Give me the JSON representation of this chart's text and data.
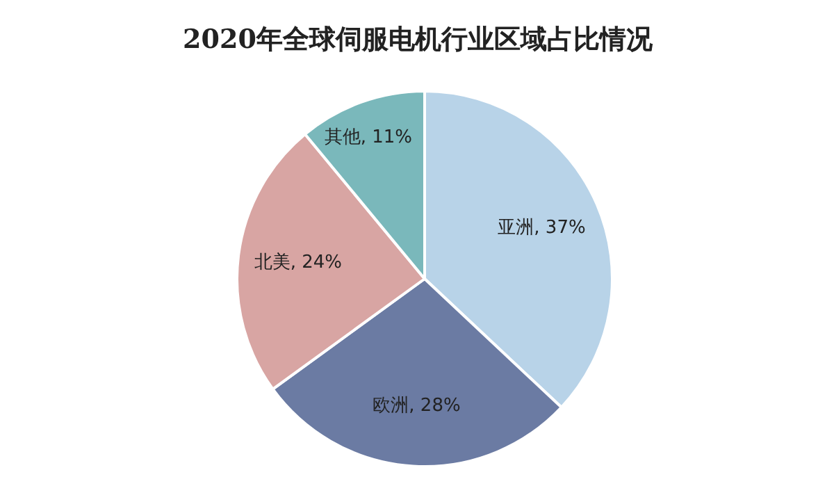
{
  "chart_data": {
    "type": "pie",
    "title": "2020年全球伺服电机行业区域占比情况",
    "categories": [
      "亚洲",
      "欧洲",
      "北美",
      "其他"
    ],
    "values": [
      37,
      28,
      24,
      11
    ],
    "colors": [
      "#b8d3e8",
      "#6b7ba3",
      "#d8a5a3",
      "#7ab8bb"
    ],
    "value_labels": [
      "37%",
      "28%",
      "24%",
      "11%"
    ]
  }
}
